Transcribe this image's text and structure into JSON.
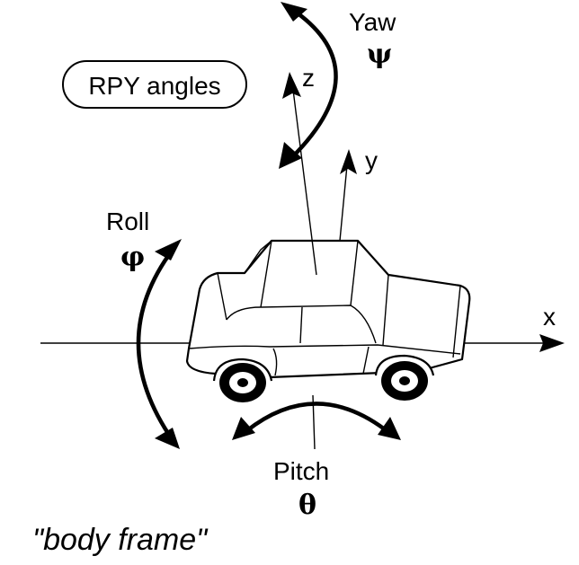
{
  "badge": {
    "text": "RPY angles"
  },
  "axes": {
    "x": "x",
    "y": "y",
    "z": "z"
  },
  "rotations": {
    "yaw": {
      "name": "Yaw",
      "symbol": "ψ"
    },
    "roll": {
      "name": "Roll",
      "symbol": "φ"
    },
    "pitch": {
      "name": "Pitch",
      "symbol": "θ"
    }
  },
  "caption": "\"body frame\"",
  "colors": {
    "ink": "#000000",
    "background": "#ffffff"
  }
}
